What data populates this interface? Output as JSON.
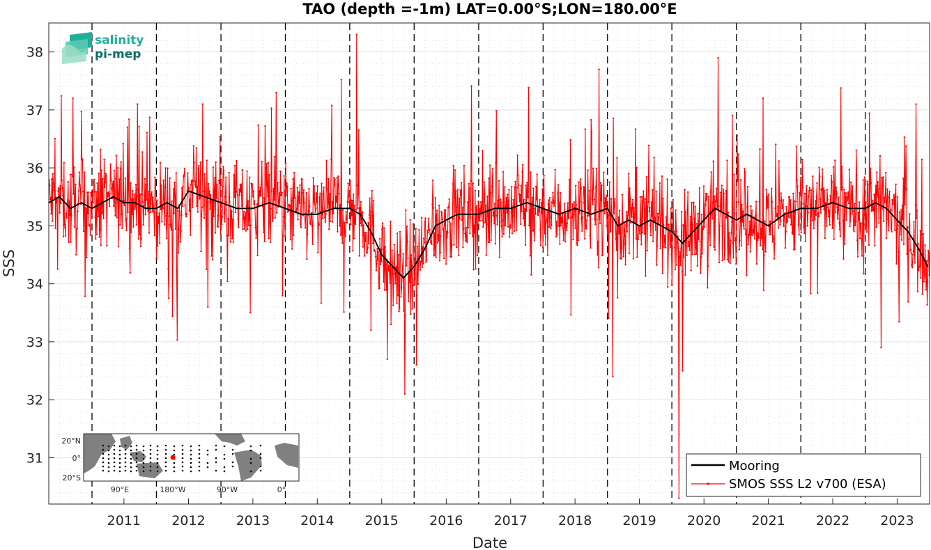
{
  "logo": {
    "line1": "salinity",
    "line2": "pi-mep",
    "color1": "#1fae9a",
    "color2": "#0d6e68"
  },
  "inset_map": {
    "lat_labels": [
      "20°N",
      "0°",
      "20°S"
    ],
    "lon_labels": [
      "90°E",
      "180°W",
      "90°W",
      "0°"
    ],
    "marker_color": "#ff0000",
    "land_color": "#808080"
  },
  "chart_data": {
    "type": "line",
    "title": "TAO (depth =-1m) LAT=0.00°S;LON=180.00°E",
    "xlabel": "Date",
    "ylabel": "SSS",
    "xlim": [
      "2010-05-01",
      "2024-01-01"
    ],
    "ylim": [
      30.2,
      38.5
    ],
    "yticks": [
      31,
      32,
      33,
      34,
      35,
      36,
      37,
      38
    ],
    "xticks": [
      "2011",
      "2012",
      "2013",
      "2014",
      "2015",
      "2016",
      "2017",
      "2018",
      "2019",
      "2020",
      "2021",
      "2022",
      "2023"
    ],
    "year_boundaries": [
      "2011-01-01",
      "2012-01-01",
      "2013-01-01",
      "2014-01-01",
      "2015-01-01",
      "2016-01-01",
      "2017-01-01",
      "2018-01-01",
      "2019-01-01",
      "2020-01-01",
      "2021-01-01",
      "2022-01-01",
      "2023-01-01"
    ],
    "grid": true,
    "legend_position": "bottom-right",
    "series": [
      {
        "name": "Mooring",
        "color": "#000000",
        "x": [
          "2010-05-01",
          "2010-07-01",
          "2010-09-01",
          "2010-11-01",
          "2011-01-01",
          "2011-03-01",
          "2011-05-01",
          "2011-07-01",
          "2011-09-01",
          "2011-11-01",
          "2012-01-01",
          "2012-03-01",
          "2012-05-01",
          "2012-07-01",
          "2013-01-01",
          "2013-04-01",
          "2013-07-01",
          "2013-10-01",
          "2014-01-01",
          "2014-04-01",
          "2014-07-01",
          "2014-10-01",
          "2015-01-01",
          "2015-03-01",
          "2015-05-01",
          "2015-07-01",
          "2015-09-01",
          "2015-11-01",
          "2016-01-01",
          "2016-03-01",
          "2016-05-01",
          "2016-07-01",
          "2016-09-01",
          "2016-11-01",
          "2017-01-01",
          "2017-04-01",
          "2017-07-01",
          "2017-10-01",
          "2018-01-01",
          "2018-04-01",
          "2018-07-01",
          "2018-10-01",
          "2019-01-01",
          "2019-03-01",
          "2019-05-01",
          "2019-07-01",
          "2019-09-01",
          "2019-11-01",
          "2020-01-01",
          "2020-03-01",
          "2020-05-01",
          "2020-07-01",
          "2020-09-01",
          "2020-11-01",
          "2021-01-01",
          "2021-03-01",
          "2021-05-01",
          "2021-07-01",
          "2021-10-01",
          "2022-01-01",
          "2022-04-01",
          "2022-07-01",
          "2022-10-01",
          "2023-01-01",
          "2023-03-01",
          "2023-05-01",
          "2023-07-01",
          "2023-09-01",
          "2023-11-01",
          "2023-12-20"
        ],
        "y": [
          35.4,
          35.5,
          35.3,
          35.4,
          35.3,
          35.4,
          35.5,
          35.4,
          35.4,
          35.3,
          35.3,
          35.4,
          35.3,
          35.6,
          35.4,
          35.3,
          35.3,
          35.4,
          35.3,
          35.2,
          35.2,
          35.3,
          35.3,
          35.2,
          34.9,
          34.5,
          34.3,
          34.1,
          34.3,
          34.6,
          35.0,
          35.1,
          35.2,
          35.2,
          35.2,
          35.3,
          35.3,
          35.4,
          35.3,
          35.2,
          35.3,
          35.2,
          35.3,
          35.0,
          35.1,
          35.0,
          35.1,
          35.0,
          34.9,
          34.7,
          34.9,
          35.1,
          35.3,
          35.2,
          35.1,
          35.2,
          35.1,
          35.0,
          35.2,
          35.3,
          35.3,
          35.4,
          35.3,
          35.3,
          35.4,
          35.3,
          35.1,
          34.9,
          34.6,
          34.3
        ]
      },
      {
        "name": "SMOS SSS L2 v700 (ESA)",
        "color": "#ff0000",
        "generated": "dense noisy record, roughly one sample every 3 days, spread about 0.6 psu around the mooring value; extreme spikes listed below",
        "spikes": [
          {
            "x": "2010-09-15",
            "y": 37.2
          },
          {
            "x": "2011-09-15",
            "y": 37.1
          },
          {
            "x": "2012-09-20",
            "y": 37.1
          },
          {
            "x": "2012-10-20",
            "y": 33.6
          },
          {
            "x": "2013-11-10",
            "y": 37.3
          },
          {
            "x": "2015-02-10",
            "y": 38.3
          },
          {
            "x": "2015-05-01",
            "y": 33.2
          },
          {
            "x": "2015-08-01",
            "y": 32.7
          },
          {
            "x": "2015-11-10",
            "y": 32.1
          },
          {
            "x": "2016-01-15",
            "y": 32.6
          },
          {
            "x": "2018-11-15",
            "y": 37.7
          },
          {
            "x": "2019-02-01",
            "y": 32.4
          },
          {
            "x": "2020-02-10",
            "y": 30.3
          },
          {
            "x": "2020-03-01",
            "y": 32.5
          },
          {
            "x": "2020-09-20",
            "y": 37.9
          },
          {
            "x": "2021-06-01",
            "y": 37.2
          },
          {
            "x": "2023-04-01",
            "y": 32.9
          },
          {
            "x": "2023-10-15",
            "y": 37.1
          }
        ]
      }
    ]
  }
}
